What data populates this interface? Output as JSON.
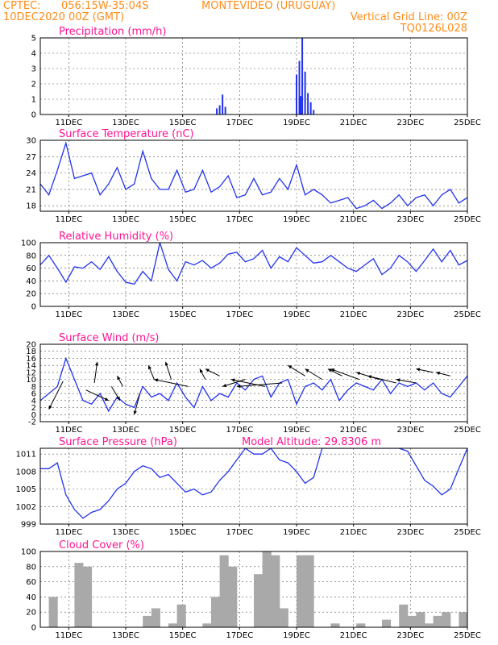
{
  "header": {
    "source": "CPTEC:",
    "coords": "056:15W-35:04S",
    "location": "MONTEVIDEO (URUGUAY)",
    "date": "10DEC2020 00Z (GMT)",
    "grid_note": "Vertical Grid Line: 00Z",
    "model_code": "TQ0126L028"
  },
  "colors": {
    "header": "#ff8c1a",
    "title": "#ff1493",
    "line": "#2233ee",
    "cloud": "#a9a9a9"
  },
  "x_axis": {
    "range_days": [
      10,
      25
    ],
    "tick_labels": [
      "11DEC",
      "13DEC",
      "15DEC",
      "17DEC",
      "19DEC",
      "21DEC",
      "23DEC",
      "25DEC"
    ],
    "tick_days": [
      11,
      13,
      15,
      17,
      19,
      21,
      23,
      25
    ]
  },
  "chart_data": [
    {
      "id": "precip",
      "type": "bar",
      "title": "Precipitation (mm/h)",
      "ylim": [
        0,
        5
      ],
      "yticks": [
        0,
        1,
        2,
        3,
        4,
        5
      ],
      "x": [
        16.2,
        16.3,
        16.4,
        16.5,
        19.0,
        19.1,
        19.15,
        19.2,
        19.3,
        19.4,
        19.5,
        19.6
      ],
      "values": [
        0.4,
        0.6,
        1.3,
        0.5,
        2.6,
        3.5,
        1.2,
        5.0,
        2.8,
        1.4,
        0.8,
        0.3
      ]
    },
    {
      "id": "temp",
      "type": "line",
      "title": "Surface Temperature (nC)",
      "ylim": [
        17,
        30
      ],
      "yticks": [
        18,
        21,
        24,
        27,
        30
      ],
      "x": [
        10.0,
        10.3,
        10.6,
        10.9,
        11.2,
        11.5,
        11.8,
        12.1,
        12.4,
        12.7,
        13.0,
        13.3,
        13.6,
        13.9,
        14.2,
        14.5,
        14.8,
        15.1,
        15.4,
        15.7,
        16.0,
        16.3,
        16.6,
        16.9,
        17.2,
        17.5,
        17.8,
        18.1,
        18.4,
        18.7,
        19.0,
        19.3,
        19.6,
        19.9,
        20.2,
        20.5,
        20.8,
        21.1,
        21.4,
        21.7,
        22.0,
        22.3,
        22.6,
        22.9,
        23.2,
        23.5,
        23.8,
        24.1,
        24.4,
        24.7,
        25.0
      ],
      "values": [
        22,
        20,
        24.5,
        29.5,
        23,
        23.5,
        24,
        20,
        22,
        25,
        21,
        22,
        28,
        23,
        21,
        21,
        24.5,
        20.5,
        21,
        24.5,
        20.5,
        21.5,
        23.5,
        19.5,
        20,
        23,
        20,
        20.5,
        23,
        21,
        25.5,
        20,
        21,
        20,
        18.5,
        19,
        19.5,
        17.5,
        18,
        19,
        17.5,
        18.5,
        20,
        18,
        19.5,
        20,
        18,
        20,
        21,
        18.5,
        19.5
      ]
    },
    {
      "id": "rh",
      "type": "line",
      "title": "Relative Humidity (%)",
      "ylim": [
        0,
        100
      ],
      "yticks": [
        0,
        20,
        40,
        60,
        80,
        100
      ],
      "x": [
        10.0,
        10.3,
        10.6,
        10.9,
        11.2,
        11.5,
        11.8,
        12.1,
        12.4,
        12.7,
        13.0,
        13.3,
        13.6,
        13.9,
        14.2,
        14.5,
        14.8,
        15.1,
        15.4,
        15.7,
        16.0,
        16.3,
        16.6,
        16.9,
        17.2,
        17.5,
        17.8,
        18.1,
        18.4,
        18.7,
        19.0,
        19.3,
        19.6,
        19.9,
        20.2,
        20.5,
        20.8,
        21.1,
        21.4,
        21.7,
        22.0,
        22.3,
        22.6,
        22.9,
        23.2,
        23.5,
        23.8,
        24.1,
        24.4,
        24.7,
        25.0
      ],
      "values": [
        65,
        80,
        60,
        38,
        62,
        60,
        70,
        58,
        78,
        55,
        38,
        35,
        55,
        40,
        100,
        58,
        40,
        70,
        65,
        72,
        60,
        68,
        82,
        85,
        70,
        75,
        88,
        60,
        78,
        70,
        92,
        80,
        68,
        70,
        80,
        70,
        60,
        55,
        65,
        75,
        50,
        60,
        80,
        70,
        55,
        72,
        90,
        70,
        88,
        65,
        72
      ]
    },
    {
      "id": "wind",
      "type": "line",
      "title": "Surface Wind (m/s)",
      "ylim": [
        -2,
        20
      ],
      "yticks": [
        -2,
        0,
        2,
        4,
        6,
        8,
        10,
        12,
        14,
        16,
        18,
        20
      ],
      "x": [
        10.0,
        10.3,
        10.6,
        10.9,
        11.2,
        11.5,
        11.8,
        12.1,
        12.4,
        12.7,
        13.0,
        13.3,
        13.6,
        13.9,
        14.2,
        14.5,
        14.8,
        15.1,
        15.4,
        15.7,
        16.0,
        16.3,
        16.6,
        16.9,
        17.2,
        17.5,
        17.8,
        18.1,
        18.4,
        18.7,
        19.0,
        19.3,
        19.6,
        19.9,
        20.2,
        20.5,
        20.8,
        21.1,
        21.4,
        21.7,
        22.0,
        22.3,
        22.6,
        22.9,
        23.2,
        23.5,
        23.8,
        24.1,
        24.4,
        24.7,
        25.0
      ],
      "values": [
        4,
        6,
        8,
        16,
        10,
        4,
        3,
        6,
        1,
        5,
        3,
        2,
        8,
        5,
        6,
        4,
        9,
        5,
        2,
        8,
        4,
        6,
        5,
        9,
        7,
        10,
        11,
        5,
        9,
        10,
        3,
        8,
        9,
        7,
        10,
        4,
        7,
        9,
        8,
        7,
        10,
        6,
        9,
        8,
        9,
        7,
        9,
        6,
        5,
        8,
        11
      ],
      "arrows": [
        {
          "x": 10.8,
          "y": 9.5,
          "dx": -0.5,
          "dy": -8
        },
        {
          "x": 11.6,
          "y": 7,
          "dx": 0.8,
          "dy": -3
        },
        {
          "x": 11.9,
          "y": 9,
          "dx": 0.1,
          "dy": 6
        },
        {
          "x": 12.5,
          "y": 8,
          "dx": 0.3,
          "dy": -4
        },
        {
          "x": 12.9,
          "y": 8,
          "dx": -0.2,
          "dy": 3
        },
        {
          "x": 13.5,
          "y": 6,
          "dx": -0.2,
          "dy": -6
        },
        {
          "x": 14.0,
          "y": 10,
          "dx": -0.2,
          "dy": 4
        },
        {
          "x": 14.6,
          "y": 10,
          "dx": -0.2,
          "dy": 5
        },
        {
          "x": 15.2,
          "y": 8,
          "dx": -1.2,
          "dy": 2
        },
        {
          "x": 15.8,
          "y": 10,
          "dx": -0.2,
          "dy": 3
        },
        {
          "x": 16.3,
          "y": 11,
          "dx": -0.5,
          "dy": 2
        },
        {
          "x": 17.2,
          "y": 10,
          "dx": -0.8,
          "dy": -2
        },
        {
          "x": 17.9,
          "y": 8,
          "dx": -1.2,
          "dy": 2
        },
        {
          "x": 18.5,
          "y": 9,
          "dx": -1.6,
          "dy": -1
        },
        {
          "x": 19.3,
          "y": 11,
          "dx": -0.6,
          "dy": 3
        },
        {
          "x": 19.9,
          "y": 10,
          "dx": -0.6,
          "dy": 3
        },
        {
          "x": 20.6,
          "y": 11,
          "dx": -0.5,
          "dy": 2
        },
        {
          "x": 21.2,
          "y": 10,
          "dx": -1.0,
          "dy": 3
        },
        {
          "x": 21.9,
          "y": 10,
          "dx": -0.8,
          "dy": 2
        },
        {
          "x": 22.5,
          "y": 9,
          "dx": -1.0,
          "dy": 2
        },
        {
          "x": 23.2,
          "y": 9,
          "dx": -0.7,
          "dy": 1
        },
        {
          "x": 23.8,
          "y": 12,
          "dx": -0.6,
          "dy": 1
        },
        {
          "x": 24.4,
          "y": 11,
          "dx": -0.5,
          "dy": 1
        }
      ]
    },
    {
      "id": "pressure",
      "type": "line",
      "title": "Surface Pressure (hPa)",
      "annotation": "Model Altitude: 29.8306 m",
      "ylim": [
        999,
        1012
      ],
      "yticks": [
        999,
        1002,
        1005,
        1008,
        1011
      ],
      "x": [
        10.0,
        10.3,
        10.6,
        10.9,
        11.2,
        11.5,
        11.8,
        12.1,
        12.4,
        12.7,
        13.0,
        13.3,
        13.6,
        13.9,
        14.2,
        14.5,
        14.8,
        15.1,
        15.4,
        15.7,
        16.0,
        16.3,
        16.6,
        16.9,
        17.2,
        17.5,
        17.8,
        18.1,
        18.4,
        18.7,
        19.0,
        19.3,
        19.6,
        19.9,
        20.2,
        20.5,
        20.8,
        21.1,
        21.4,
        21.7,
        22.0,
        22.3,
        22.6,
        22.9,
        23.2,
        23.5,
        23.8,
        24.1,
        24.4,
        24.7,
        25.0
      ],
      "values": [
        1008.5,
        1008.5,
        1009.5,
        1004,
        1001.5,
        1000,
        1001,
        1001.5,
        1003,
        1005,
        1006,
        1008,
        1009,
        1008.5,
        1007,
        1007.5,
        1006,
        1004.5,
        1005,
        1004,
        1004.5,
        1006.5,
        1008,
        1010,
        1012,
        1011,
        1011,
        1012,
        1010,
        1009.5,
        1008,
        1006,
        1007,
        1012,
        1012,
        1012,
        1012,
        1012,
        1012,
        1012,
        1012,
        1012,
        1012,
        1011.5,
        1009,
        1006.5,
        1005.5,
        1004,
        1005,
        1008.5,
        1012
      ]
    },
    {
      "id": "cloud",
      "type": "area",
      "title": "Cloud Cover (%)",
      "ylim": [
        0,
        100
      ],
      "yticks": [
        0,
        20,
        40,
        60,
        80,
        100
      ],
      "x": [
        10.0,
        10.3,
        10.6,
        10.9,
        11.2,
        11.5,
        11.8,
        12.1,
        12.4,
        12.7,
        13.0,
        13.3,
        13.6,
        13.9,
        14.2,
        14.5,
        14.8,
        15.1,
        15.4,
        15.7,
        16.0,
        16.3,
        16.6,
        16.9,
        17.2,
        17.5,
        17.8,
        18.1,
        18.4,
        18.7,
        19.0,
        19.3,
        19.6,
        19.9,
        20.2,
        20.5,
        20.8,
        21.1,
        21.4,
        21.7,
        22.0,
        22.3,
        22.6,
        22.9,
        23.2,
        23.5,
        23.8,
        24.1,
        24.4,
        24.7,
        25.0
      ],
      "values": [
        0,
        40,
        0,
        0,
        85,
        80,
        0,
        0,
        0,
        0,
        0,
        0,
        15,
        25,
        0,
        5,
        30,
        0,
        0,
        5,
        40,
        95,
        80,
        0,
        0,
        70,
        100,
        95,
        25,
        0,
        95,
        95,
        0,
        0,
        5,
        0,
        0,
        5,
        0,
        0,
        10,
        0,
        30,
        15,
        20,
        5,
        15,
        20,
        0,
        20,
        0
      ]
    }
  ]
}
